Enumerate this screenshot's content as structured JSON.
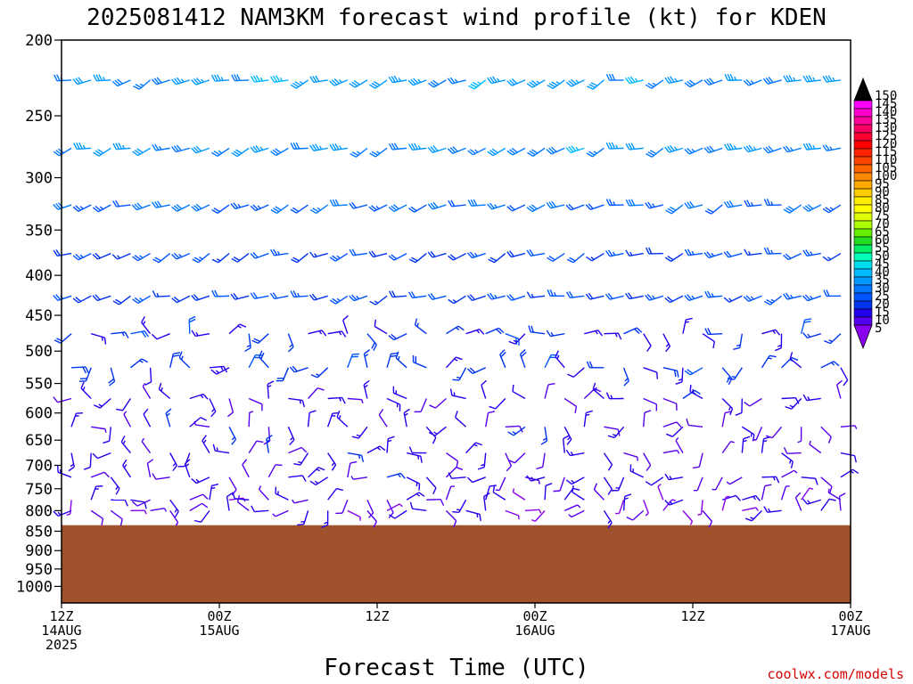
{
  "chart_data": {
    "type": "wind-barb-time-height",
    "title": "2025081412 NAM3KM forecast wind profile (kt) for KDEN",
    "xlabel": "Forecast Time (UTC)",
    "y_scale": "log-pressure (inverted)",
    "ylim": [
      1050,
      200
    ],
    "y_ticks": [
      200,
      250,
      300,
      350,
      400,
      450,
      500,
      550,
      600,
      650,
      700,
      750,
      800,
      850,
      900,
      950,
      1000
    ],
    "xlim_hours": [
      0,
      60
    ],
    "x_ticks": [
      {
        "hour": 0,
        "lines": [
          "12Z",
          "14AUG",
          "2025"
        ]
      },
      {
        "hour": 12,
        "lines": [
          "00Z",
          "15AUG"
        ]
      },
      {
        "hour": 24,
        "lines": [
          "12Z"
        ]
      },
      {
        "hour": 36,
        "lines": [
          "00Z",
          "16AUG"
        ]
      },
      {
        "hour": 48,
        "lines": [
          "12Z"
        ]
      },
      {
        "hour": 60,
        "lines": [
          "00Z",
          "17AUG"
        ]
      }
    ],
    "ground_pressure_hpa": 835,
    "ground_color": "#a0522d",
    "barb_time_step_hours": 1.5,
    "barb_levels_hpa": [
      225,
      275,
      325,
      375,
      425,
      475,
      525,
      575,
      625,
      675,
      725,
      775,
      800
    ],
    "wind_speed_kt_by_level": [
      {
        "level": 225,
        "typical_speed": 30
      },
      {
        "level": 275,
        "typical_speed": 30
      },
      {
        "level": 325,
        "typical_speed": 25
      },
      {
        "level": 375,
        "typical_speed": 20
      },
      {
        "level": 425,
        "typical_speed": 20
      },
      {
        "level": 475,
        "typical_speed": 15
      },
      {
        "level": 525,
        "typical_speed": 15
      },
      {
        "level": 575,
        "typical_speed": 10
      },
      {
        "level": 625,
        "typical_speed": 10
      },
      {
        "level": 675,
        "typical_speed": 10
      },
      {
        "level": 725,
        "typical_speed": 10
      },
      {
        "level": 775,
        "typical_speed": 8
      },
      {
        "level": 800,
        "typical_speed": 8
      }
    ],
    "colorbar": {
      "labels": [
        "150",
        "145",
        "140",
        "135",
        "130",
        "125",
        "120",
        "115",
        "110",
        "105",
        "100",
        "95",
        "90",
        "85",
        "80",
        "75",
        "70",
        "65",
        "60",
        "55",
        "50",
        "45",
        "40",
        "35",
        "30",
        "25",
        "20",
        "15",
        "10",
        "5"
      ],
      "colors": [
        "#000000",
        "#ff00ff",
        "#ff00cc",
        "#ff0099",
        "#ff0066",
        "#ff0033",
        "#ff0000",
        "#ff2200",
        "#ff4400",
        "#ff6600",
        "#ff8800",
        "#ffaa00",
        "#ffcc00",
        "#ffee00",
        "#ffff00",
        "#ddff00",
        "#aaff00",
        "#66ee00",
        "#22dd22",
        "#00ee66",
        "#00ffbb",
        "#00ddee",
        "#00bbff",
        "#0099ff",
        "#0077ff",
        "#0055ff",
        "#0033ee",
        "#2200ee",
        "#5500ee",
        "#8800ee"
      ]
    },
    "grid": false,
    "legend": "colorbar-right"
  },
  "credit": "coolwx.com/models"
}
